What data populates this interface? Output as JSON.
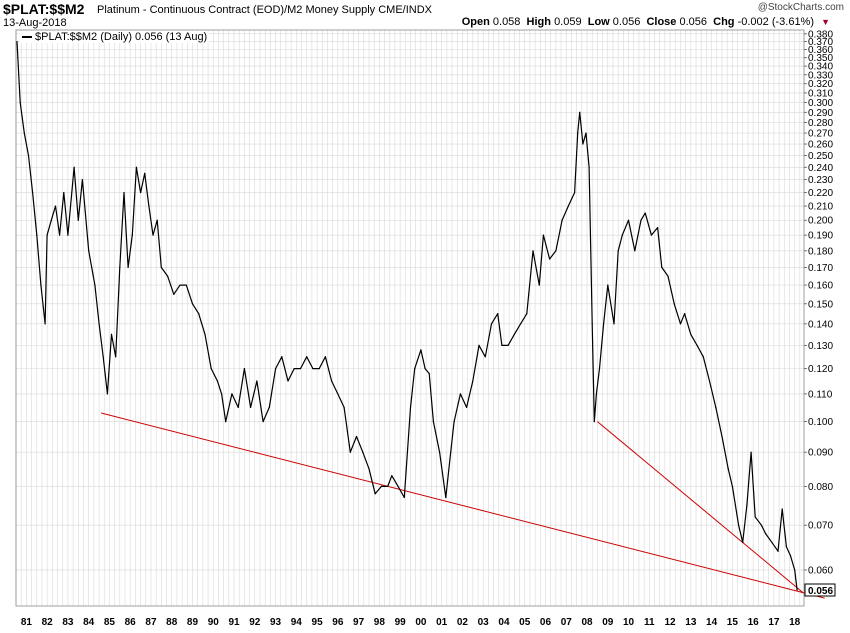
{
  "header": {
    "symbol": "$PLAT:$$M2",
    "description": "Platinum - Continuous Contract (EOD)/M2 Money Supply  CME/INDX",
    "date": "13-Aug-2018",
    "brand": "@StockCharts.com",
    "open_label": "Open",
    "open": "0.058",
    "high_label": "High",
    "high": "0.059",
    "low_label": "Low",
    "low": "0.056",
    "close_label": "Close",
    "close": "0.056",
    "chg_label": "Chg",
    "chg": "-0.002 (-3.61%)"
  },
  "legend": {
    "text": "$PLAT:$$M2 (Daily) 0.056 (13 Aug)"
  },
  "colors": {
    "series": "#000000",
    "trendline": "#cc0000",
    "grid": "#d8d8d8",
    "last_value_box": "#000000"
  },
  "chart_data": {
    "type": "line",
    "y_scale": "log",
    "ylim": [
      0.053,
      0.385
    ],
    "xlim": [
      1981.0,
      2018.95
    ],
    "grid": true,
    "x_tick_labels": [
      "81",
      "82",
      "83",
      "84",
      "85",
      "86",
      "87",
      "88",
      "89",
      "90",
      "91",
      "92",
      "93",
      "94",
      "95",
      "96",
      "97",
      "98",
      "99",
      "00",
      "01",
      "02",
      "03",
      "04",
      "05",
      "06",
      "07",
      "08",
      "09",
      "10",
      "11",
      "12",
      "13",
      "14",
      "15",
      "16",
      "17",
      "18"
    ],
    "y_tick_labels": [
      "0.380",
      "0.370",
      "0.360",
      "0.350",
      "0.340",
      "0.330",
      "0.320",
      "0.310",
      "0.300",
      "0.290",
      "0.280",
      "0.270",
      "0.260",
      "0.250",
      "0.240",
      "0.230",
      "0.220",
      "0.210",
      "0.200",
      "0.190",
      "0.180",
      "0.170",
      "0.160",
      "0.150",
      "0.140",
      "0.130",
      "0.120",
      "0.110",
      "0.100",
      "0.090",
      "0.080",
      "0.070",
      "0.060"
    ],
    "last_value_label": "0.056",
    "series": [
      {
        "x": [
          1981.05,
          1981.2,
          1981.4,
          1981.6,
          1981.8,
          1982.0,
          1982.2,
          1982.4,
          1982.5,
          1982.7,
          1982.9,
          1983.1,
          1983.3,
          1983.5,
          1983.8,
          1984.0,
          1984.2,
          1984.5,
          1984.8,
          1985.0,
          1985.2,
          1985.4,
          1985.6,
          1985.8,
          1986.0,
          1986.2,
          1986.4,
          1986.6,
          1986.8,
          1987.0,
          1987.2,
          1987.4,
          1987.6,
          1987.8,
          1988.0,
          1988.3,
          1988.6,
          1988.9,
          1989.2,
          1989.5,
          1989.8,
          1990.1,
          1990.4,
          1990.7,
          1990.9,
          1991.1,
          1991.4,
          1991.7,
          1992.0,
          1992.3,
          1992.6,
          1992.9,
          1993.2,
          1993.5,
          1993.8,
          1994.1,
          1994.4,
          1994.7,
          1995.0,
          1995.3,
          1995.6,
          1995.9,
          1996.2,
          1996.5,
          1996.8,
          1997.1,
          1997.4,
          1997.7,
          1998.0,
          1998.3,
          1998.6,
          1998.9,
          1999.1,
          1999.4,
          1999.7,
          2000.0,
          2000.2,
          2000.5,
          2000.7,
          2000.9,
          2001.1,
          2001.4,
          2001.7,
          2001.9,
          2002.1,
          2002.4,
          2002.7,
          2003.0,
          2003.3,
          2003.6,
          2003.9,
          2004.2,
          2004.4,
          2004.7,
          2005.0,
          2005.3,
          2005.6,
          2005.9,
          2006.2,
          2006.4,
          2006.7,
          2007.0,
          2007.3,
          2007.6,
          2007.9,
          2008.05,
          2008.15,
          2008.3,
          2008.45,
          2008.6,
          2008.75,
          2008.85,
          2008.95,
          2009.1,
          2009.3,
          2009.5,
          2009.8,
          2010.0,
          2010.2,
          2010.5,
          2010.8,
          2011.1,
          2011.3,
          2011.6,
          2011.9,
          2012.1,
          2012.4,
          2012.7,
          2013.0,
          2013.2,
          2013.5,
          2013.8,
          2014.1,
          2014.4,
          2014.7,
          2015.0,
          2015.3,
          2015.5,
          2015.8,
          2016.0,
          2016.2,
          2016.4,
          2016.6,
          2016.9,
          2017.1,
          2017.4,
          2017.7,
          2017.9,
          2018.1,
          2018.3,
          2018.5,
          2018.62
        ],
        "y": [
          0.37,
          0.3,
          0.27,
          0.25,
          0.22,
          0.19,
          0.16,
          0.14,
          0.19,
          0.2,
          0.21,
          0.19,
          0.22,
          0.19,
          0.24,
          0.2,
          0.23,
          0.18,
          0.16,
          0.14,
          0.125,
          0.11,
          0.135,
          0.125,
          0.17,
          0.22,
          0.17,
          0.19,
          0.24,
          0.22,
          0.235,
          0.21,
          0.19,
          0.2,
          0.17,
          0.165,
          0.155,
          0.16,
          0.16,
          0.15,
          0.145,
          0.135,
          0.12,
          0.115,
          0.11,
          0.1,
          0.11,
          0.105,
          0.12,
          0.105,
          0.115,
          0.1,
          0.105,
          0.12,
          0.125,
          0.115,
          0.12,
          0.12,
          0.125,
          0.12,
          0.12,
          0.125,
          0.115,
          0.11,
          0.105,
          0.09,
          0.095,
          0.09,
          0.085,
          0.078,
          0.08,
          0.08,
          0.083,
          0.08,
          0.077,
          0.105,
          0.12,
          0.128,
          0.12,
          0.118,
          0.1,
          0.09,
          0.077,
          0.088,
          0.1,
          0.11,
          0.105,
          0.115,
          0.13,
          0.125,
          0.14,
          0.145,
          0.13,
          0.13,
          0.135,
          0.14,
          0.145,
          0.18,
          0.16,
          0.19,
          0.175,
          0.18,
          0.2,
          0.21,
          0.22,
          0.27,
          0.29,
          0.26,
          0.27,
          0.24,
          0.14,
          0.1,
          0.11,
          0.12,
          0.14,
          0.16,
          0.14,
          0.18,
          0.19,
          0.2,
          0.18,
          0.2,
          0.205,
          0.19,
          0.195,
          0.17,
          0.165,
          0.15,
          0.14,
          0.145,
          0.135,
          0.13,
          0.125,
          0.115,
          0.105,
          0.095,
          0.085,
          0.08,
          0.07,
          0.066,
          0.075,
          0.09,
          0.072,
          0.07,
          0.068,
          0.066,
          0.064,
          0.074,
          0.065,
          0.063,
          0.06,
          0.056
        ]
      }
    ],
    "trendlines": [
      {
        "x": [
          1985.1,
          2018.9
        ],
        "y": [
          0.103,
          0.0555
        ]
      },
      {
        "x": [
          2009.0,
          2018.9
        ],
        "y": [
          0.1,
          0.0555
        ]
      }
    ]
  }
}
